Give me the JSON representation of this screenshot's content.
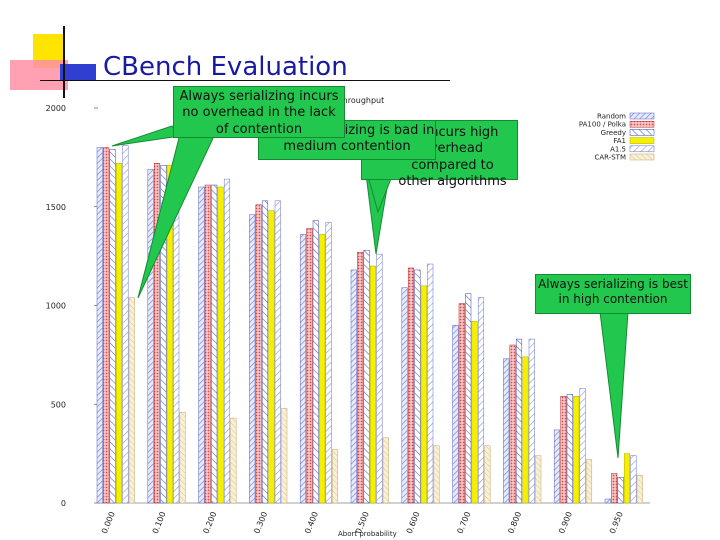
{
  "slide": {
    "title": "CBench Evaluation"
  },
  "callouts": {
    "c1": "Always serializing incurs no overhead in the lack of contention",
    "c2": "Always serializing is bad in medium contention",
    "c3": "PA incurs high overhead compared to other algorithms",
    "c4": "Always serializing is best in high contention"
  },
  "colors": {
    "callout_fill": "#22c84e"
  },
  "chart_data": {
    "type": "bar",
    "title": "nch: Throughput",
    "xlabel": "Abort probability",
    "ylabel": "",
    "ylim": [
      0,
      2000
    ],
    "yticks": [
      "0",
      "500",
      "1000",
      "1500",
      "2000"
    ],
    "categories": [
      "0.000",
      "0.100",
      "0.200",
      "0.300",
      "0.400",
      "0.500",
      "0.600",
      "0.700",
      "0.800",
      "0.900",
      "0.950"
    ],
    "series": [
      {
        "name": "Random",
        "color": "#7a86d8",
        "values": [
          1800,
          1690,
          1600,
          1460,
          1360,
          1180,
          1090,
          900,
          730,
          370,
          20
        ]
      },
      {
        "name": "PA100 / Polka",
        "color": "#e24a4a",
        "values": [
          1800,
          1720,
          1610,
          1510,
          1390,
          1270,
          1190,
          1010,
          800,
          540,
          150
        ]
      },
      {
        "name": "Greedy",
        "color": "#5a6ac8",
        "values": [
          1790,
          1710,
          1610,
          1530,
          1430,
          1280,
          1180,
          1060,
          830,
          550,
          130
        ]
      },
      {
        "name": "FA1",
        "color": "#f4f000",
        "values": [
          1720,
          1710,
          1600,
          1480,
          1360,
          1200,
          1100,
          920,
          740,
          540,
          250
        ]
      },
      {
        "name": "A1.5",
        "color": "#8a96e0",
        "values": [
          1810,
          1720,
          1640,
          1530,
          1420,
          1260,
          1210,
          1040,
          830,
          580,
          240
        ]
      },
      {
        "name": "CAR-STM",
        "color": "#f0dca8",
        "values": [
          1040,
          460,
          430,
          480,
          270,
          330,
          290,
          290,
          240,
          220,
          140
        ]
      }
    ],
    "legend": {
      "placement": "top-right",
      "labels": [
        "Random",
        "PA100 / Polka",
        "Greedy",
        "FA1",
        "A1.5",
        "CAR-STM"
      ]
    }
  }
}
